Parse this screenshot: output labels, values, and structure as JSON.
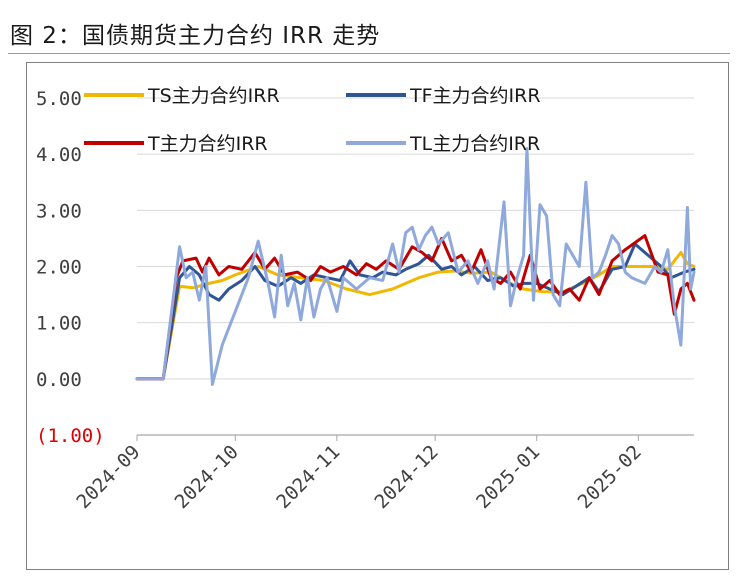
{
  "title": "图 2：国债期货主力合约 IRR 走势",
  "chart_data": {
    "type": "line",
    "title": "",
    "xlabel": "",
    "ylabel": "",
    "ylim": [
      -1,
      5
    ],
    "y_ticks": [
      {
        "value": 5,
        "label": "5.00"
      },
      {
        "value": 4,
        "label": "4.00"
      },
      {
        "value": 3,
        "label": "3.00"
      },
      {
        "value": 2,
        "label": "2.00"
      },
      {
        "value": 1,
        "label": "1.00"
      },
      {
        "value": 0,
        "label": "0.00"
      },
      {
        "value": -1,
        "label": "(1.00)"
      }
    ],
    "x_range": [
      "2024-09-01",
      "2025-02-18"
    ],
    "x_ticks": [
      {
        "date": "2024-09-01",
        "label": "2024-09"
      },
      {
        "date": "2024-10-01",
        "label": "2024-10"
      },
      {
        "date": "2024-11-01",
        "label": "2024-11"
      },
      {
        "date": "2024-12-01",
        "label": "2024-12"
      },
      {
        "date": "2025-01-01",
        "label": "2025-01"
      },
      {
        "date": "2025-02-01",
        "label": "2025-02"
      }
    ],
    "grid": "horizontal",
    "legend_position": "top",
    "series": [
      {
        "name": "TS主力合约IRR",
        "color": "#f0b800",
        "points": [
          [
            "2024-09-01",
            0
          ],
          [
            "2024-09-09",
            0
          ],
          [
            "2024-09-14",
            1.65
          ],
          [
            "2024-09-18",
            1.62
          ],
          [
            "2024-09-23",
            1.7
          ],
          [
            "2024-09-27",
            1.75
          ],
          [
            "2024-10-01",
            1.85
          ],
          [
            "2024-10-08",
            2.0
          ],
          [
            "2024-10-14",
            1.85
          ],
          [
            "2024-10-21",
            1.8
          ],
          [
            "2024-10-28",
            1.75
          ],
          [
            "2024-11-04",
            1.6
          ],
          [
            "2024-11-11",
            1.5
          ],
          [
            "2024-11-18",
            1.6
          ],
          [
            "2024-11-22",
            1.7
          ],
          [
            "2024-11-26",
            1.8
          ],
          [
            "2024-12-02",
            1.9
          ],
          [
            "2024-12-07",
            1.92
          ],
          [
            "2024-12-12",
            1.88
          ],
          [
            "2024-12-18",
            1.9
          ],
          [
            "2024-12-24",
            1.7
          ],
          [
            "2024-12-28",
            1.6
          ],
          [
            "2025-01-03",
            1.55
          ],
          [
            "2025-01-09",
            1.55
          ],
          [
            "2025-01-15",
            1.7
          ],
          [
            "2025-01-20",
            1.85
          ],
          [
            "2025-01-24",
            2.0
          ],
          [
            "2025-01-31",
            2.0
          ],
          [
            "2025-02-05",
            2.0
          ],
          [
            "2025-02-10",
            1.95
          ],
          [
            "2025-02-14",
            2.25
          ],
          [
            "2025-02-16",
            2.05
          ],
          [
            "2025-02-18",
            2.0
          ]
        ]
      },
      {
        "name": "TF主力合约IRR",
        "color": "#2f5597",
        "points": [
          [
            "2024-09-01",
            0
          ],
          [
            "2024-09-09",
            0
          ],
          [
            "2024-09-14",
            1.8
          ],
          [
            "2024-09-17",
            2.0
          ],
          [
            "2024-09-20",
            1.85
          ],
          [
            "2024-09-23",
            1.5
          ],
          [
            "2024-09-26",
            1.4
          ],
          [
            "2024-09-29",
            1.6
          ],
          [
            "2024-10-03",
            1.75
          ],
          [
            "2024-10-07",
            2.0
          ],
          [
            "2024-10-10",
            1.75
          ],
          [
            "2024-10-14",
            1.65
          ],
          [
            "2024-10-18",
            1.8
          ],
          [
            "2024-10-21",
            1.7
          ],
          [
            "2024-10-25",
            1.85
          ],
          [
            "2024-10-29",
            1.8
          ],
          [
            "2024-11-02",
            1.75
          ],
          [
            "2024-11-05",
            2.1
          ],
          [
            "2024-11-08",
            1.85
          ],
          [
            "2024-11-12",
            1.8
          ],
          [
            "2024-11-15",
            1.9
          ],
          [
            "2024-11-19",
            1.85
          ],
          [
            "2024-11-22",
            1.95
          ],
          [
            "2024-11-26",
            2.05
          ],
          [
            "2024-11-29",
            2.2
          ],
          [
            "2024-12-03",
            1.95
          ],
          [
            "2024-12-06",
            2.0
          ],
          [
            "2024-12-09",
            1.85
          ],
          [
            "2024-12-13",
            2.0
          ],
          [
            "2024-12-17",
            1.75
          ],
          [
            "2024-12-21",
            1.8
          ],
          [
            "2024-12-25",
            1.65
          ],
          [
            "2024-12-28",
            1.7
          ],
          [
            "2025-01-01",
            1.7
          ],
          [
            "2025-01-05",
            1.6
          ],
          [
            "2025-01-09",
            1.5
          ],
          [
            "2025-01-13",
            1.65
          ],
          [
            "2025-01-17",
            1.8
          ],
          [
            "2025-01-20",
            1.55
          ],
          [
            "2025-01-24",
            1.95
          ],
          [
            "2025-01-28",
            2.0
          ],
          [
            "2025-01-31",
            2.4
          ],
          [
            "2025-02-04",
            2.2
          ],
          [
            "2025-02-08",
            2.0
          ],
          [
            "2025-02-11",
            1.8
          ],
          [
            "2025-02-15",
            1.9
          ],
          [
            "2025-02-18",
            1.95
          ]
        ]
      },
      {
        "name": "T主力合约IRR",
        "color": "#c00000",
        "points": [
          [
            "2024-09-01",
            0
          ],
          [
            "2024-09-09",
            0
          ],
          [
            "2024-09-13",
            1.8
          ],
          [
            "2024-09-15",
            2.1
          ],
          [
            "2024-09-19",
            2.15
          ],
          [
            "2024-09-21",
            1.9
          ],
          [
            "2024-09-23",
            2.15
          ],
          [
            "2024-09-26",
            1.85
          ],
          [
            "2024-09-29",
            2.0
          ],
          [
            "2024-10-03",
            1.95
          ],
          [
            "2024-10-07",
            2.25
          ],
          [
            "2024-10-10",
            1.95
          ],
          [
            "2024-10-13",
            2.15
          ],
          [
            "2024-10-16",
            1.85
          ],
          [
            "2024-10-20",
            1.9
          ],
          [
            "2024-10-24",
            1.75
          ],
          [
            "2024-10-27",
            2.0
          ],
          [
            "2024-10-30",
            1.9
          ],
          [
            "2024-11-03",
            2.0
          ],
          [
            "2024-11-07",
            1.85
          ],
          [
            "2024-11-10",
            2.05
          ],
          [
            "2024-11-13",
            1.95
          ],
          [
            "2024-11-16",
            2.1
          ],
          [
            "2024-11-20",
            1.95
          ],
          [
            "2024-11-24",
            2.35
          ],
          [
            "2024-11-27",
            2.25
          ],
          [
            "2024-11-30",
            2.1
          ],
          [
            "2024-12-03",
            2.5
          ],
          [
            "2024-12-06",
            2.1
          ],
          [
            "2024-12-09",
            2.2
          ],
          [
            "2024-12-12",
            1.9
          ],
          [
            "2024-12-15",
            2.3
          ],
          [
            "2024-12-18",
            1.8
          ],
          [
            "2024-12-21",
            1.7
          ],
          [
            "2024-12-24",
            1.9
          ],
          [
            "2024-12-27",
            1.6
          ],
          [
            "2024-12-30",
            2.2
          ],
          [
            "2025-01-02",
            1.6
          ],
          [
            "2025-01-05",
            1.75
          ],
          [
            "2025-01-08",
            1.5
          ],
          [
            "2025-01-11",
            1.6
          ],
          [
            "2025-01-14",
            1.4
          ],
          [
            "2025-01-17",
            1.8
          ],
          [
            "2025-01-20",
            1.5
          ],
          [
            "2025-01-24",
            2.1
          ],
          [
            "2025-01-28",
            2.3
          ],
          [
            "2025-02-03",
            2.55
          ],
          [
            "2025-02-07",
            1.9
          ],
          [
            "2025-02-10",
            1.85
          ],
          [
            "2025-02-12",
            1.15
          ],
          [
            "2025-02-14",
            1.6
          ],
          [
            "2025-02-16",
            1.7
          ],
          [
            "2025-02-18",
            1.4
          ]
        ]
      },
      {
        "name": "TL主力合约IRR",
        "color": "#8fa9dc",
        "points": [
          [
            "2024-09-01",
            0
          ],
          [
            "2024-09-09",
            0
          ],
          [
            "2024-09-12",
            1.4
          ],
          [
            "2024-09-14",
            2.35
          ],
          [
            "2024-09-16",
            1.8
          ],
          [
            "2024-09-18",
            1.9
          ],
          [
            "2024-09-20",
            1.4
          ],
          [
            "2024-09-22",
            2.0
          ],
          [
            "2024-09-24",
            -0.1
          ],
          [
            "2024-09-27",
            0.6
          ],
          [
            "2024-10-01",
            1.2
          ],
          [
            "2024-10-05",
            1.8
          ],
          [
            "2024-10-08",
            2.45
          ],
          [
            "2024-10-11",
            1.7
          ],
          [
            "2024-10-13",
            1.1
          ],
          [
            "2024-10-15",
            2.2
          ],
          [
            "2024-10-17",
            1.3
          ],
          [
            "2024-10-19",
            1.7
          ],
          [
            "2024-10-21",
            1.05
          ],
          [
            "2024-10-23",
            1.8
          ],
          [
            "2024-10-25",
            1.1
          ],
          [
            "2024-10-27",
            1.6
          ],
          [
            "2024-10-29",
            1.8
          ],
          [
            "2024-11-01",
            1.2
          ],
          [
            "2024-11-03",
            1.8
          ],
          [
            "2024-11-07",
            1.6
          ],
          [
            "2024-11-11",
            1.8
          ],
          [
            "2024-11-15",
            1.75
          ],
          [
            "2024-11-18",
            2.4
          ],
          [
            "2024-11-20",
            1.9
          ],
          [
            "2024-11-22",
            2.6
          ],
          [
            "2024-11-24",
            2.7
          ],
          [
            "2024-11-26",
            2.3
          ],
          [
            "2024-11-28",
            2.55
          ],
          [
            "2024-11-30",
            2.7
          ],
          [
            "2024-12-02",
            2.4
          ],
          [
            "2024-12-05",
            2.6
          ],
          [
            "2024-12-08",
            1.9
          ],
          [
            "2024-12-11",
            2.1
          ],
          [
            "2024-12-14",
            1.7
          ],
          [
            "2024-12-17",
            2.1
          ],
          [
            "2024-12-19",
            1.6
          ],
          [
            "2024-12-22",
            3.15
          ],
          [
            "2024-12-24",
            1.3
          ],
          [
            "2024-12-26",
            1.8
          ],
          [
            "2024-12-28",
            2.2
          ],
          [
            "2024-12-29",
            4.1
          ],
          [
            "2024-12-31",
            1.4
          ],
          [
            "2025-01-02",
            3.1
          ],
          [
            "2025-01-04",
            2.9
          ],
          [
            "2025-01-06",
            1.5
          ],
          [
            "2025-01-08",
            1.3
          ],
          [
            "2025-01-10",
            2.4
          ],
          [
            "2025-01-14",
            2.0
          ],
          [
            "2025-01-16",
            3.5
          ],
          [
            "2025-01-18",
            1.8
          ],
          [
            "2025-01-20",
            1.9
          ],
          [
            "2025-01-22",
            2.2
          ],
          [
            "2025-01-24",
            2.55
          ],
          [
            "2025-01-26",
            2.4
          ],
          [
            "2025-01-28",
            1.9
          ],
          [
            "2025-01-30",
            1.8
          ],
          [
            "2025-02-03",
            1.7
          ],
          [
            "2025-02-06",
            2.0
          ],
          [
            "2025-02-08",
            1.9
          ],
          [
            "2025-02-10",
            2.3
          ],
          [
            "2025-02-12",
            1.3
          ],
          [
            "2025-02-14",
            0.6
          ],
          [
            "2025-02-16",
            3.05
          ],
          [
            "2025-02-17",
            1.6
          ],
          [
            "2025-02-18",
            1.9
          ]
        ]
      }
    ]
  }
}
